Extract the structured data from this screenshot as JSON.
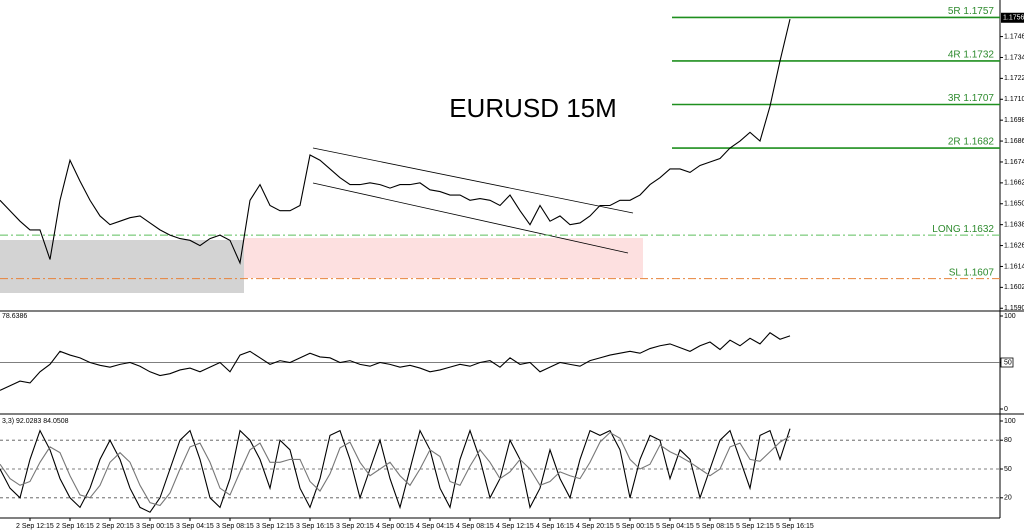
{
  "chart_data": [
    {
      "type": "line",
      "title": "EURUSD 15M",
      "color": "#000000",
      "values": [
        1.1652,
        1.1646,
        1.164,
        1.1635,
        1.1635,
        1.1618,
        1.1652,
        1.1675,
        1.1663,
        1.1652,
        1.1643,
        1.1638,
        1.164,
        1.1642,
        1.1643,
        1.1639,
        1.1635,
        1.1632,
        1.163,
        1.1629,
        1.1626,
        1.163,
        1.1632,
        1.1629,
        1.1616,
        1.1652,
        1.1661,
        1.1649,
        1.1646,
        1.1646,
        1.1649,
        1.1678,
        1.1675,
        1.167,
        1.1665,
        1.1661,
        1.1661,
        1.1662,
        1.1661,
        1.1659,
        1.1661,
        1.1661,
        1.1662,
        1.1658,
        1.1657,
        1.1655,
        1.1655,
        1.1652,
        1.1653,
        1.1652,
        1.1649,
        1.1655,
        1.1646,
        1.1638,
        1.1649,
        1.164,
        1.1643,
        1.1638,
        1.1639,
        1.1643,
        1.1649,
        1.1649,
        1.1652,
        1.1652,
        1.1655,
        1.1661,
        1.1665,
        1.167,
        1.167,
        1.1668,
        1.1672,
        1.1674,
        1.1676,
        1.1682,
        1.1686,
        1.1691,
        1.1686,
        1.1706,
        1.1732,
        1.1756
      ],
      "ylim": [
        1.1589,
        1.1767
      ],
      "yticks": [
        {
          "value": 1.1746,
          "label": "1.17460"
        },
        {
          "value": 1.1734,
          "label": "1.17340"
        },
        {
          "value": 1.1722,
          "label": "1.17220"
        },
        {
          "value": 1.171,
          "label": "1.17100"
        },
        {
          "value": 1.1698,
          "label": "1.16980"
        },
        {
          "value": 1.1686,
          "label": "1.16860"
        },
        {
          "value": 1.1674,
          "label": "1.16740"
        },
        {
          "value": 1.1662,
          "label": "1.16620"
        },
        {
          "value": 1.165,
          "label": "1.16500"
        },
        {
          "value": 1.1638,
          "label": "1.16380"
        },
        {
          "value": 1.1626,
          "label": "1.16260"
        },
        {
          "value": 1.1614,
          "label": "1.16140"
        },
        {
          "value": 1.1602,
          "label": "1.16020"
        },
        {
          "value": 1.159,
          "label": "1.15900"
        }
      ],
      "last_price": {
        "value": 1.17568,
        "label": "1.17568"
      },
      "levels": [
        {
          "label": "5R 1.1757",
          "value": 1.1757,
          "color": "#1f8f1f",
          "style": "solid"
        },
        {
          "label": "4R 1.1732",
          "value": 1.1732,
          "color": "#1f8f1f",
          "style": "solid"
        },
        {
          "label": "3R 1.1707",
          "value": 1.1707,
          "color": "#1f8f1f",
          "style": "solid"
        },
        {
          "label": "2R 1.1682",
          "value": 1.1682,
          "color": "#1f8f1f",
          "style": "solid"
        },
        {
          "label": "LONG 1.1632",
          "value": 1.1632,
          "color": "#5cbf5c",
          "style": "dashdot"
        },
        {
          "label": "SL 1.1607",
          "value": 1.1607,
          "color": "#e8823a",
          "style": "dashdot"
        }
      ]
    },
    {
      "type": "line",
      "header": "78.6386",
      "color": "#000000",
      "values": [
        20,
        25,
        30,
        28,
        40,
        48,
        62,
        58,
        55,
        50,
        47,
        45,
        48,
        50,
        46,
        40,
        36,
        38,
        42,
        44,
        40,
        45,
        50,
        40,
        58,
        62,
        55,
        48,
        52,
        50,
        55,
        60,
        56,
        55,
        50,
        52,
        48,
        46,
        50,
        48,
        45,
        47,
        44,
        40,
        42,
        45,
        48,
        46,
        50,
        52,
        45,
        55,
        48,
        50,
        40,
        45,
        50,
        48,
        46,
        52,
        55,
        58,
        60,
        62,
        60,
        65,
        68,
        70,
        66,
        62,
        68,
        72,
        64,
        74,
        68,
        76,
        70,
        82,
        75,
        78.6386
      ],
      "ylim": [
        0,
        100
      ],
      "yticks": [
        0,
        50,
        100
      ],
      "levels": [
        50
      ]
    },
    {
      "type": "line",
      "header": "3,3) 92.0283 84.0508",
      "series": [
        {
          "color": "#000000",
          "values": [
            50,
            30,
            20,
            60,
            90,
            70,
            40,
            20,
            10,
            30,
            60,
            80,
            60,
            30,
            10,
            5,
            20,
            50,
            80,
            90,
            60,
            20,
            10,
            40,
            90,
            80,
            60,
            30,
            80,
            70,
            30,
            10,
            40,
            85,
            90,
            60,
            20,
            50,
            80,
            40,
            10,
            50,
            90,
            70,
            30,
            10,
            60,
            90,
            60,
            20,
            40,
            80,
            60,
            10,
            30,
            70,
            40,
            20,
            60,
            90,
            85,
            90,
            70,
            20,
            60,
            85,
            80,
            40,
            70,
            60,
            20,
            50,
            80,
            90,
            60,
            30,
            85,
            90,
            60,
            92.0283
          ]
        },
        {
          "color": "#777777",
          "values": [
            55,
            40,
            33,
            37,
            57,
            73,
            67,
            43,
            23,
            20,
            33,
            57,
            67,
            57,
            33,
            15,
            12,
            25,
            50,
            73,
            77,
            57,
            30,
            23,
            47,
            70,
            77,
            57,
            57,
            60,
            60,
            37,
            27,
            45,
            72,
            78,
            57,
            43,
            50,
            57,
            43,
            33,
            50,
            70,
            63,
            37,
            33,
            53,
            70,
            57,
            40,
            47,
            60,
            50,
            33,
            37,
            47,
            43,
            40,
            57,
            78,
            88,
            82,
            60,
            50,
            55,
            75,
            68,
            63,
            57,
            50,
            43,
            50,
            73,
            77,
            60,
            58,
            68,
            78,
            84.0508
          ]
        }
      ],
      "ylim": [
        0,
        100
      ],
      "yticks": [
        20,
        50,
        80,
        100
      ],
      "levels": [
        20,
        50,
        80
      ],
      "categories": [
        null,
        null,
        null,
        "2 Sep 12:15",
        null,
        null,
        null,
        "2 Sep 16:15",
        null,
        null,
        null,
        "2 Sep 20:15",
        null,
        null,
        null,
        "3 Sep 00:15",
        null,
        null,
        null,
        "3 Sep 04:15",
        null,
        null,
        null,
        "3 Sep 08:15",
        null,
        null,
        null,
        "3 Sep 12:15",
        null,
        null,
        null,
        "3 Sep 16:15",
        null,
        null,
        null,
        "3 Sep 20:15",
        null,
        null,
        null,
        "4 Sep 00:15",
        null,
        null,
        null,
        "4 Sep 04:15",
        null,
        null,
        null,
        "4 Sep 08:15",
        null,
        null,
        null,
        "4 Sep 12:15",
        null,
        null,
        null,
        "4 Sep 16:15",
        null,
        null,
        null,
        "4 Sep 20:15",
        null,
        null,
        null,
        "5 Sep 00:15",
        null,
        null,
        null,
        "5 Sep 04:15",
        null,
        null,
        null,
        "5 Sep 08:15",
        null,
        null,
        null,
        "5 Sep 12:15",
        null,
        null,
        null,
        "5 Sep 16:15"
      ]
    }
  ]
}
